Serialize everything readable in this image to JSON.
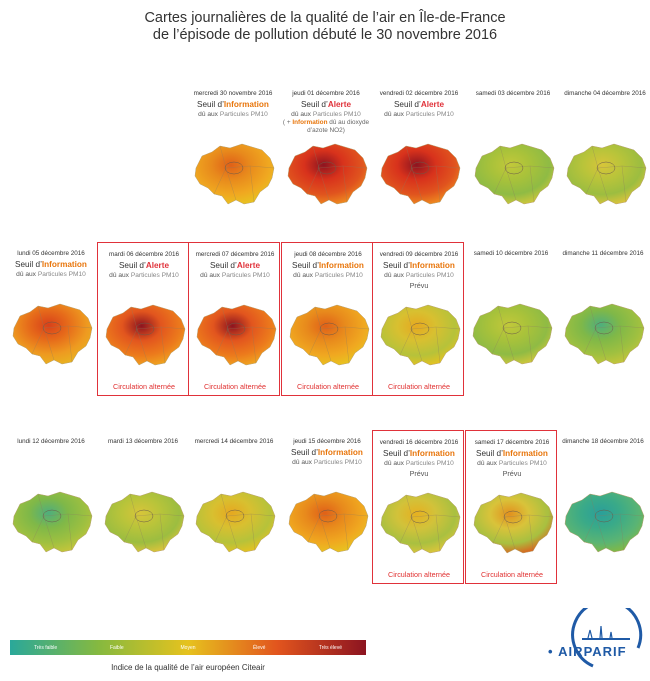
{
  "title": {
    "line1": "Cartes journalières de la qualité de l’air en Île-de-France",
    "line2": "de l’épisode de pollution débuté le 30 novembre 2016"
  },
  "colors": {
    "frame": "#e0323a",
    "information": "#e8760c",
    "alerte": "#e0323a",
    "circulation": "#e03030",
    "brand": "#1f5aa6"
  },
  "days": [
    {
      "date": "mercredi 30 novembre 2016",
      "seuil_prefix": "Seuil d’",
      "seuil": "Information",
      "seuil_type": "information",
      "cause_prefix": "dû aux",
      "cause": "Particules PM10",
      "level": "info"
    },
    {
      "date": "jeudi 01 décembre 2016",
      "seuil_prefix": "Seuil d’",
      "seuil": "Alerte",
      "seuil_type": "alerte",
      "cause_prefix": "dû aux",
      "cause": "Particules PM10",
      "extra_1": "( + ",
      "extra_info": "Information",
      "extra_2": " dû au dioxyde d’azote NO2)",
      "level": "alerte-strong"
    },
    {
      "date": "vendredi 02 décembre 2016",
      "seuil_prefix": "Seuil d’",
      "seuil": "Alerte",
      "seuil_type": "alerte",
      "cause_prefix": "dû aux",
      "cause": "Particules PM10",
      "level": "alerte-strong"
    },
    {
      "date": "samedi 03 décembre 2016",
      "level": "good"
    },
    {
      "date": "dimanche 04 décembre 2016",
      "level": "good-moyen"
    },
    {
      "date": "lundi 05 décembre 2016",
      "seuil_prefix": "Seuil d’",
      "seuil": "Information",
      "seuil_type": "information",
      "cause_prefix": "dû aux",
      "cause": "Particules PM10",
      "level": "info-high"
    },
    {
      "date": "mardi 06 décembre 2016",
      "seuil_prefix": "Seuil d’",
      "seuil": "Alerte",
      "seuil_type": "alerte",
      "cause_prefix": "dû aux",
      "cause": "Particules PM10",
      "circulation": "Circulation alternée",
      "level": "alerte"
    },
    {
      "date": "mercredi 07 décembre 2016",
      "seuil_prefix": "Seuil d’",
      "seuil": "Alerte",
      "seuil_type": "alerte",
      "cause_prefix": "dû aux",
      "cause": "Particules PM10",
      "circulation": "Circulation alternée",
      "level": "alerte"
    },
    {
      "date": "jeudi 08 décembre 2016",
      "seuil_prefix": "Seuil d’",
      "seuil": "Information",
      "seuil_type": "information",
      "cause_prefix": "dû aux",
      "cause": "Particules PM10",
      "circulation": "Circulation alternée",
      "level": "info"
    },
    {
      "date": "vendredi 09 décembre 2016",
      "seuil_prefix": "Seuil d’",
      "seuil": "Information",
      "seuil_type": "information",
      "cause_prefix": "dû aux",
      "cause": "Particules PM10",
      "prevu": "Prévu",
      "circulation": "Circulation alternée",
      "level": "moyen"
    },
    {
      "date": "samedi 10 décembre 2016",
      "level": "good"
    },
    {
      "date": "dimanche 11 décembre 2016",
      "level": "good-teal"
    },
    {
      "date": "lundi 12 décembre 2016",
      "level": "good-teal"
    },
    {
      "date": "mardi 13 décembre 2016",
      "level": "good-moyen"
    },
    {
      "date": "mercredi 14 décembre 2016",
      "level": "moyen"
    },
    {
      "date": "jeudi 15 décembre 2016",
      "seuil_prefix": "Seuil d’",
      "seuil": "Information",
      "seuil_type": "information",
      "cause_prefix": "dû aux",
      "cause": "Particules PM10",
      "level": "info"
    },
    {
      "date": "vendredi 16 décembre 2016",
      "seuil_prefix": "Seuil d’",
      "seuil": "Information",
      "seuil_type": "information",
      "cause_prefix": "dû aux",
      "cause": "Particules PM10",
      "prevu": "Prévu",
      "circulation": "Circulation alternée",
      "level": "moyen-good"
    },
    {
      "date": "samedi 17 décembre 2016",
      "seuil_prefix": "Seuil d’",
      "seuil": "Information",
      "seuil_type": "information",
      "cause_prefix": "dû aux",
      "cause": "Particules PM10",
      "prevu": "Prévu",
      "circulation": "Circulation alternée",
      "level": "mixed"
    },
    {
      "date": "dimanche 18 décembre 2016",
      "level": "teal"
    }
  ],
  "legend": {
    "items": [
      {
        "label": "Très faible",
        "color": "#2aa89a"
      },
      {
        "label": "Faible",
        "color": "#86b93f"
      },
      {
        "label": "Moyen",
        "color": "#e6c21e"
      },
      {
        "label": "Élevé",
        "color": "#e2551e"
      },
      {
        "label": "Très élevé",
        "color": "#8c1420"
      }
    ],
    "caption": "Indice de la qualité de l’air européen Citeair"
  },
  "logo": {
    "part1": "AIR",
    "part2": "PARIF"
  }
}
